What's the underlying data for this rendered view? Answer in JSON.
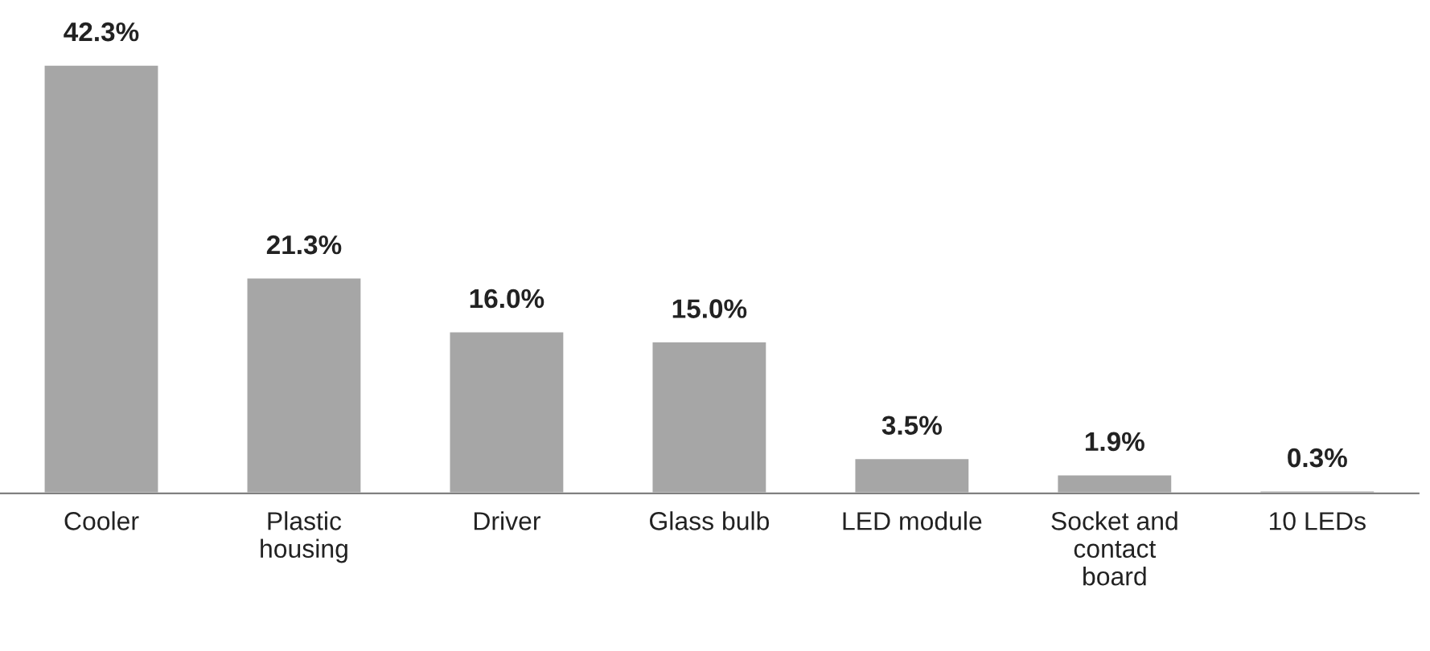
{
  "chart_data": {
    "type": "bar",
    "categories": [
      "Cooler",
      "Plastic\nhousing",
      "Driver",
      "Glass bulb",
      "LED module",
      "Socket and\ncontact\nboard",
      "10 LEDs"
    ],
    "values": [
      42.3,
      21.3,
      16.0,
      15.0,
      3.5,
      1.9,
      0.3
    ],
    "value_labels": [
      "42.3%",
      "21.3%",
      "16.0%",
      "15.0%",
      "3.5%",
      "1.9%",
      "0.3%"
    ],
    "color": "#a6a6a6",
    "grid": false,
    "legend": false
  }
}
